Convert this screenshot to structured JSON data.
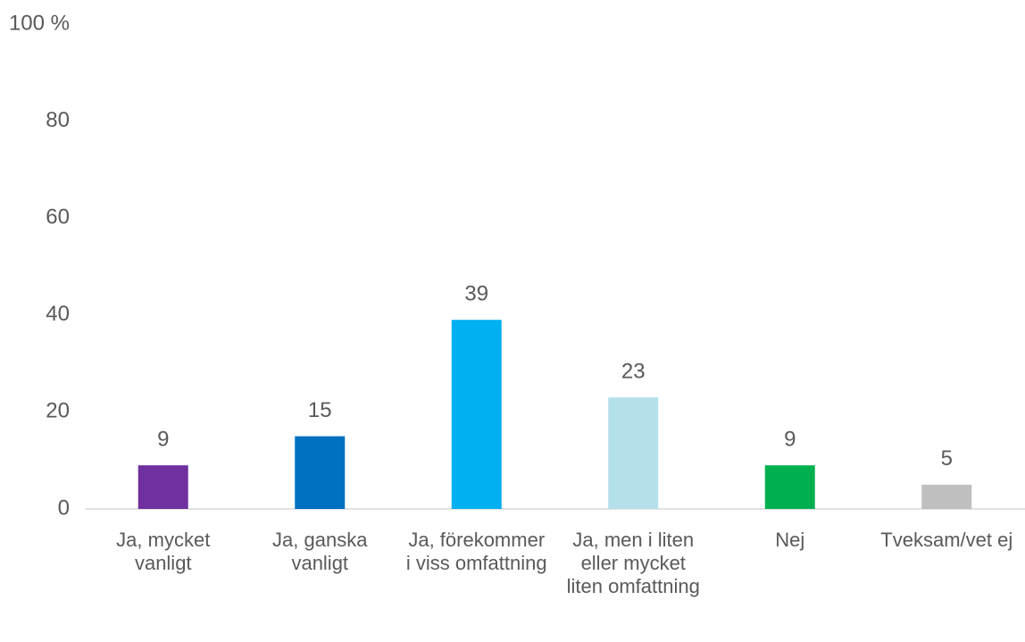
{
  "chart_data": {
    "type": "bar",
    "categories": [
      "Ja, mycket vanligt",
      "Ja, ganska vanligt",
      "Ja, förekommer i viss omfattning",
      "Ja, men i liten eller mycket liten omfattning",
      "Nej",
      "Tveksam/vet ej"
    ],
    "values": [
      9,
      15,
      39,
      23,
      9,
      5
    ],
    "colors": [
      "#7030a0",
      "#0070c0",
      "#00b0f0",
      "#b4e0ec",
      "#00b050",
      "#bfbfbf"
    ],
    "ylim": [
      0,
      100
    ],
    "yticks": [
      0,
      20,
      40,
      60,
      80,
      {
        "value": 100,
        "label": "100 %"
      }
    ],
    "grid": false
  }
}
